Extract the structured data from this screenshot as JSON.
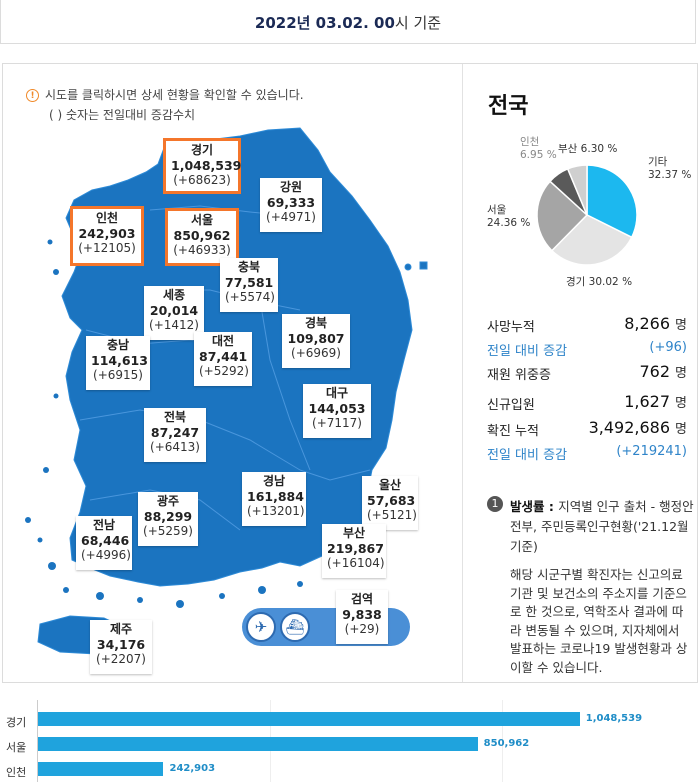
{
  "header": {
    "date": "2022년 03.02. 00",
    "suffix": "시 기준"
  },
  "notice": {
    "icon": "info-circle-icon",
    "line1": "시도를 클릭하시면 상세 현황을 확인할 수 있습니다.",
    "line2": "( ) 숫자는 전일대비 증감수치"
  },
  "regions": [
    {
      "name": "경기",
      "total": "1,048,539",
      "change": "(+68623)",
      "highlight": true
    },
    {
      "name": "강원",
      "total": "69,333",
      "change": "(+4971)",
      "highlight": false
    },
    {
      "name": "인천",
      "total": "242,903",
      "change": "(+12105)",
      "highlight": true
    },
    {
      "name": "서울",
      "total": "850,962",
      "change": "(+46933)",
      "highlight": true
    },
    {
      "name": "충북",
      "total": "77,581",
      "change": "(+5574)",
      "highlight": false
    },
    {
      "name": "세종",
      "total": "20,014",
      "change": "(+1412)",
      "highlight": false
    },
    {
      "name": "충남",
      "total": "114,613",
      "change": "(+6915)",
      "highlight": false
    },
    {
      "name": "대전",
      "total": "87,441",
      "change": "(+5292)",
      "highlight": false
    },
    {
      "name": "경북",
      "total": "109,807",
      "change": "(+6969)",
      "highlight": false
    },
    {
      "name": "대구",
      "total": "144,053",
      "change": "(+7117)",
      "highlight": false
    },
    {
      "name": "전북",
      "total": "87,247",
      "change": "(+6413)",
      "highlight": false
    },
    {
      "name": "광주",
      "total": "88,299",
      "change": "(+5259)",
      "highlight": false
    },
    {
      "name": "경남",
      "total": "161,884",
      "change": "(+13201)",
      "highlight": false
    },
    {
      "name": "울산",
      "total": "57,683",
      "change": "(+5121)",
      "highlight": false
    },
    {
      "name": "전남",
      "total": "68,446",
      "change": "(+4996)",
      "highlight": false
    },
    {
      "name": "부산",
      "total": "219,867",
      "change": "(+16104)",
      "highlight": false
    },
    {
      "name": "검역",
      "total": "9,838",
      "change": "(+29)",
      "highlight": false
    },
    {
      "name": "제주",
      "total": "34,176",
      "change": "(+2207)",
      "highlight": false
    }
  ],
  "transit": {
    "airport_icon": "airplane-icon",
    "seaport_icon": "ship-icon"
  },
  "sidebar": {
    "title": "전국",
    "pie": {
      "slices": [
        {
          "label": "기타",
          "pct": "32.37 %",
          "value": 32.37,
          "color": "#1cb8ef"
        },
        {
          "label": "경기",
          "pct": "30.02 %",
          "value": 30.02,
          "color": "#e4e4e4"
        },
        {
          "label": "서울",
          "pct": "24.36 %",
          "value": 24.36,
          "color": "#a5a5a5"
        },
        {
          "label": "인천",
          "pct": "6.95 %",
          "value": 6.95,
          "color": "#5a5a5a"
        },
        {
          "label": "부산",
          "pct": "6.30 %",
          "value": 6.3,
          "color": "#cfcfcf"
        }
      ]
    },
    "stats": {
      "deaths_label": "사망누적",
      "deaths_value": "8,266",
      "unit": "명",
      "deaths_diff_label": "전일 대비 증감",
      "deaths_diff_value": "(+96)",
      "hosp_label": "재원 위중증",
      "hosp_value": "762",
      "inflow_label": "신규입원",
      "inflow_value": "1,627",
      "cases_label": "확진 누적",
      "cases_value": "3,492,686",
      "cases_diff_label": "전일 대비 증감",
      "cases_diff_value": "(+219241)"
    },
    "note": {
      "number": "1",
      "head_bold": "발생률 : ",
      "head_text": "지역별 인구 출처 - 행정안전부, 주민등록인구현황('21.12월 기준)",
      "body": "해당 시군구별 확진자는 신고의료기관 및 보건소의 주소지를 기준으로 한 것으로, 역학조사 결과에 따라 변동될 수 있으며, 지자체에서 발표하는 코로나19 발생현황과 상이할 수 있습니다."
    }
  },
  "bars": {
    "max": 1200000,
    "rows": [
      {
        "label": "경기",
        "value": 1048539,
        "text": "1,048,539"
      },
      {
        "label": "서울",
        "value": 850962,
        "text": "850,962"
      },
      {
        "label": "인천",
        "value": 242903,
        "text": "242,903"
      }
    ]
  }
}
